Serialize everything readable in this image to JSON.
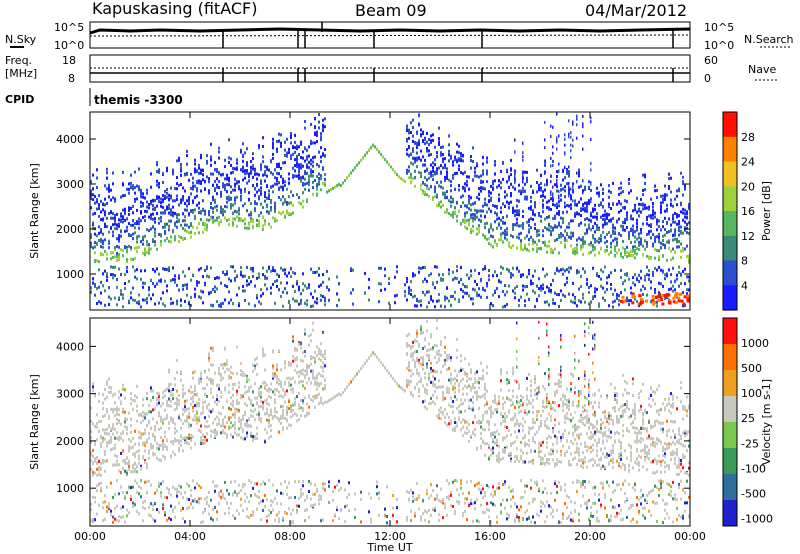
{
  "header": {
    "site": "Kapuskasing (fitACF)",
    "beam": "Beam 09",
    "date": "04/Mar/2012"
  },
  "noise_panel": {
    "left_label": "N.Sky",
    "left_ticks": [
      "10^5",
      "10^0"
    ],
    "right_label": "N.Search",
    "right_ticks": [
      "10^5",
      "10^0"
    ]
  },
  "freq_panel": {
    "left_label_line1": "Freq.",
    "left_label_line2": "[MHz]",
    "left_ticks": [
      "18",
      "8"
    ],
    "right_label": "Nave",
    "right_ticks": [
      "60",
      "0"
    ]
  },
  "cpid_panel": {
    "label": "CPID",
    "text": "themis -3300"
  },
  "chart_data": [
    {
      "type": "heatmap",
      "name_on_chart": "",
      "ylabel": "Slant Range [km]",
      "yticks": [
        "1000",
        "2000",
        "3000",
        "4000"
      ],
      "ylim": [
        200,
        4600
      ],
      "colorbar_label": "Power [dB]",
      "colorbar_ticks": [
        "28",
        "24",
        "20",
        "16",
        "12",
        "8",
        "4"
      ],
      "colorscale": [
        "#1a1aff",
        "#2a4fd0",
        "#3a8a7a",
        "#55b860",
        "#9ed23a",
        "#f0c020",
        "#ff8000",
        "#ff1000"
      ]
    },
    {
      "type": "heatmap",
      "ylabel": "Slant Range [km]",
      "yticks": [
        "1000",
        "2000",
        "3000",
        "4000"
      ],
      "ylim": [
        200,
        4600
      ],
      "colorbar_label": "Velocity [m s-1]",
      "colorbar_ticks": [
        "1000",
        "500",
        "100",
        "25",
        "-25",
        "-100",
        "-500",
        "-1000"
      ],
      "colorscale": [
        "#2020d0",
        "#2f6fa0",
        "#3c9a5a",
        "#7ac850",
        "#c8c8c0",
        "#f0a020",
        "#ff7000",
        "#ff1010"
      ]
    }
  ],
  "xaxis": {
    "label": "Time UT",
    "ticks": [
      "00:00",
      "04:00",
      "08:00",
      "12:00",
      "16:00",
      "20:00",
      "00:00"
    ],
    "range_hours": [
      0,
      24
    ]
  }
}
